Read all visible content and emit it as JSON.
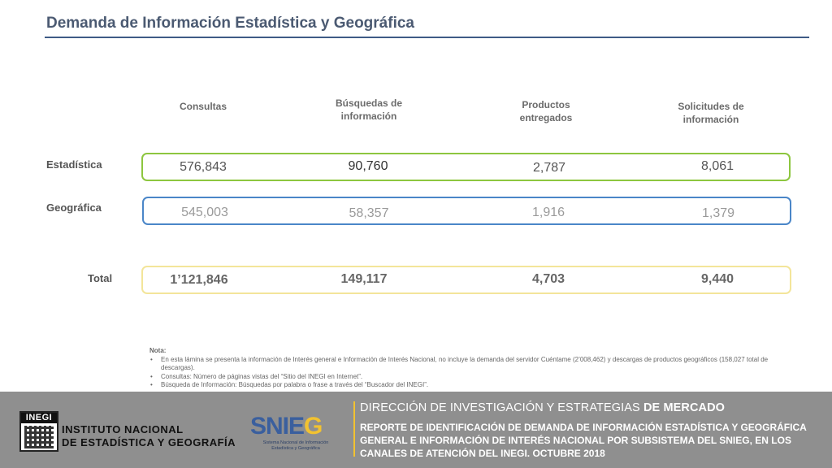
{
  "header": {
    "title": "Demanda de Información Estadística y Geográfica"
  },
  "columns": [
    "Consultas",
    "Búsquedas de información",
    "Productos entregados",
    "Solicitudes de información"
  ],
  "rows": {
    "estadistica": {
      "label": "Estadística",
      "values": [
        "576,843",
        "90,760",
        "2,787",
        "8,061"
      ]
    },
    "geografica": {
      "label": "Geográfica",
      "values": [
        "545,003",
        "58,357",
        "1,916",
        "1,379"
      ]
    },
    "total": {
      "label": "Total",
      "values": [
        "1’121,846",
        "149,117",
        "4,703",
        "9,440"
      ]
    }
  },
  "notes": {
    "label": "Nota:",
    "items": [
      "En esta lámina se presenta la información de Interés general e Información de Interés Nacional, no incluye la demanda del servidor Cuéntame (2’008,462) y descargas de productos geográficos (158,027 total de descargas).",
      "Consultas: Número de páginas vistas del “Sitio del INEGI en Internet”.",
      "Búsqueda de Información: Búsquedas por palabra o frase a través del “Buscador del INEGI”."
    ]
  },
  "footer": {
    "inegi_logo_text": "INEGI",
    "inegi_line1": "INSTITUTO NACIONAL",
    "inegi_line2": "DE ESTADÍSTICA Y GEOGRAFÍA",
    "snieg_word_a": "SNIE",
    "snieg_word_b": "G",
    "snieg_sub1": "Sistema Nacional de Información",
    "snieg_sub2": "Estadística y Geográfica",
    "direction_a": "DIRECCIÓN DE INVESTIGACIÓN Y ESTRATEGIAS",
    "direction_b": "DE MERCADO",
    "report": "REPORTE DE IDENTIFICACIÓN DE DEMANDA DE INFORMACIÓN ESTADÍSTICA Y GEOGRÁFICA GENERAL E INFORMACIÓN DE INTERÉS NACIONAL POR SUBSISTEMA DEL SNIEG, EN LOS CANALES DE ATENCIÓN DEL INEGI. OCTUBRE 2018"
  },
  "colors": {
    "title": "#4b5a72",
    "rule": "#3f5b86",
    "estadistica_border": "#8dc63f",
    "geografica_border": "#4a86c8",
    "total_border": "#f3e59a",
    "footer_bg": "#8f8f8f",
    "accent": "#f2c230"
  }
}
